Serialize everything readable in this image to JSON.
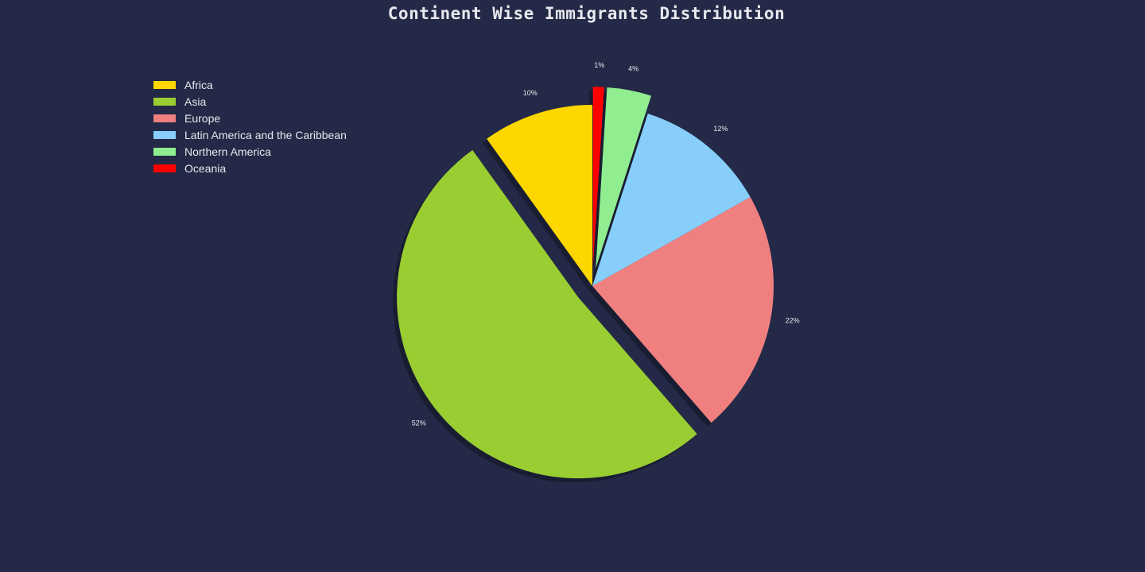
{
  "chart_data": {
    "type": "pie",
    "title": "Continent Wise Immigrants Distribution",
    "categories": [
      "Africa",
      "Asia",
      "Europe",
      "Latin America and the Caribbean",
      "Northern America",
      "Oceania"
    ],
    "values": [
      10,
      52,
      22,
      12,
      4,
      1
    ],
    "labels": [
      "10%",
      "52%",
      "22%",
      "12%",
      "4%",
      "1%"
    ],
    "colors": [
      "#ffd700",
      "#9acd32",
      "#f08080",
      "#87cefa",
      "#90ee90",
      "#ff0000"
    ],
    "exploded": [
      "Asia",
      "Northern America",
      "Oceania"
    ],
    "shadow": true,
    "start_angle_deg": 90,
    "direction": "counterclockwise",
    "legend_position": "upper-left"
  },
  "colors": {
    "background": "#232946",
    "text": "#e8e8ee"
  }
}
